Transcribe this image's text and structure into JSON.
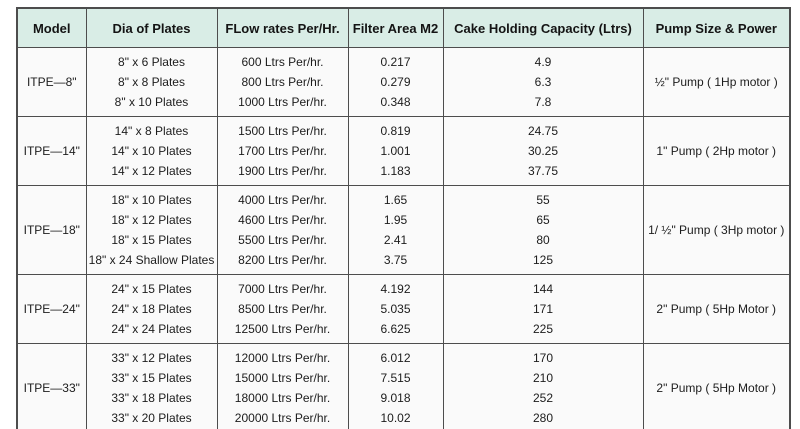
{
  "table": {
    "headers": [
      "Model",
      "Dia of Plates",
      "FLow rates Per/Hr.",
      "Filter Area M2",
      "Cake Holding Capacity (Ltrs)",
      "Pump Size & Power"
    ],
    "groups": [
      {
        "model": "ITPE—8\"",
        "pump": "½\" Pump ( 1Hp motor )",
        "rows": [
          {
            "dia": "8\" x 6 Plates",
            "flow": "600 Ltrs Per/hr.",
            "area": "0.217",
            "cake": "4.9"
          },
          {
            "dia": "8\" x 8 Plates",
            "flow": "800 Ltrs Per/hr.",
            "area": "0.279",
            "cake": "6.3"
          },
          {
            "dia": "8\" x 10 Plates",
            "flow": "1000 Ltrs Per/hr.",
            "area": "0.348",
            "cake": "7.8"
          }
        ]
      },
      {
        "model": "ITPE—14\"",
        "pump": "1\" Pump ( 2Hp motor )",
        "rows": [
          {
            "dia": "14\" x 8 Plates",
            "flow": "1500 Ltrs Per/hr.",
            "area": "0.819",
            "cake": "24.75"
          },
          {
            "dia": "14\" x 10 Plates",
            "flow": "1700 Ltrs Per/hr.",
            "area": "1.001",
            "cake": "30.25"
          },
          {
            "dia": "14\" x 12 Plates",
            "flow": "1900 Ltrs Per/hr.",
            "area": "1.183",
            "cake": "37.75"
          }
        ]
      },
      {
        "model": "ITPE—18\"",
        "pump": "1/ ½\" Pump ( 3Hp motor )",
        "rows": [
          {
            "dia": "18\" x 10 Plates",
            "flow": "4000 Ltrs Per/hr.",
            "area": "1.65",
            "cake": "55"
          },
          {
            "dia": "18\" x 12 Plates",
            "flow": "4600 Ltrs Per/hr.",
            "area": "1.95",
            "cake": "65"
          },
          {
            "dia": "18\" x 15 Plates",
            "flow": "5500 Ltrs Per/hr.",
            "area": "2.41",
            "cake": "80"
          },
          {
            "dia": "18\" x 24 Shallow Plates",
            "flow": "8200 Ltrs Per/hr.",
            "area": "3.75",
            "cake": "125"
          }
        ]
      },
      {
        "model": "ITPE—24\"",
        "pump": "2\" Pump ( 5Hp Motor )",
        "rows": [
          {
            "dia": "24\" x 15 Plates",
            "flow": "7000 Ltrs Per/hr.",
            "area": "4.192",
            "cake": "144"
          },
          {
            "dia": "24\" x 18 Plates",
            "flow": "8500 Ltrs Per/hr.",
            "area": "5.035",
            "cake": "171"
          },
          {
            "dia": "24\" x 24 Plates",
            "flow": "12500 Ltrs Per/hr.",
            "area": "6.625",
            "cake": "225"
          }
        ]
      },
      {
        "model": "ITPE—33\"",
        "pump": "2\" Pump ( 5Hp Motor )",
        "rows": [
          {
            "dia": "33\" x 12 Plates",
            "flow": "12000 Ltrs Per/hr.",
            "area": "6.012",
            "cake": "170"
          },
          {
            "dia": "33\" x 15 Plates",
            "flow": "15000 Ltrs Per/hr.",
            "area": "7.515",
            "cake": "210"
          },
          {
            "dia": "33\" x 18 Plates",
            "flow": "18000 Ltrs Per/hr.",
            "area": "9.018",
            "cake": "252"
          },
          {
            "dia": "33\" x 20 Plates",
            "flow": "20000 Ltrs Per/hr.",
            "area": "10.02",
            "cake": "280"
          }
        ]
      }
    ]
  },
  "colors": {
    "header_bg": "#d9ede6",
    "cell_bg": "#fafafa",
    "border": "#4d4d4d",
    "text": "#1c1c1c"
  }
}
